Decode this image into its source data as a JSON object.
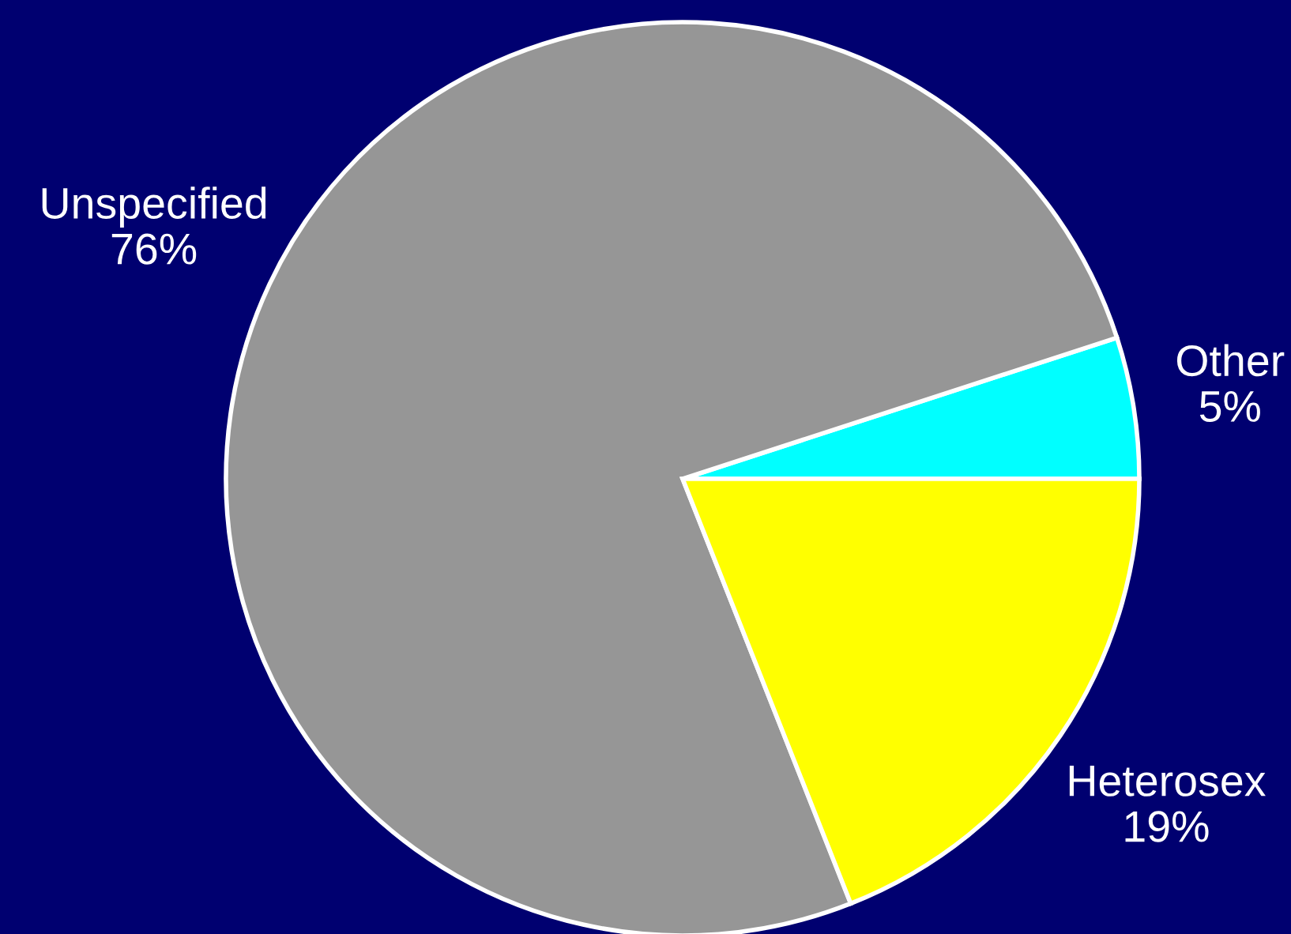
{
  "chart_data": {
    "type": "pie",
    "categories": [
      "Other",
      "Unspecified",
      "Heterosex"
    ],
    "values": [
      5,
      76,
      19
    ],
    "colors": [
      "#00ffff",
      "#969696",
      "#ffff00"
    ],
    "value_labels": [
      "5%",
      "76%",
      "19%"
    ]
  }
}
